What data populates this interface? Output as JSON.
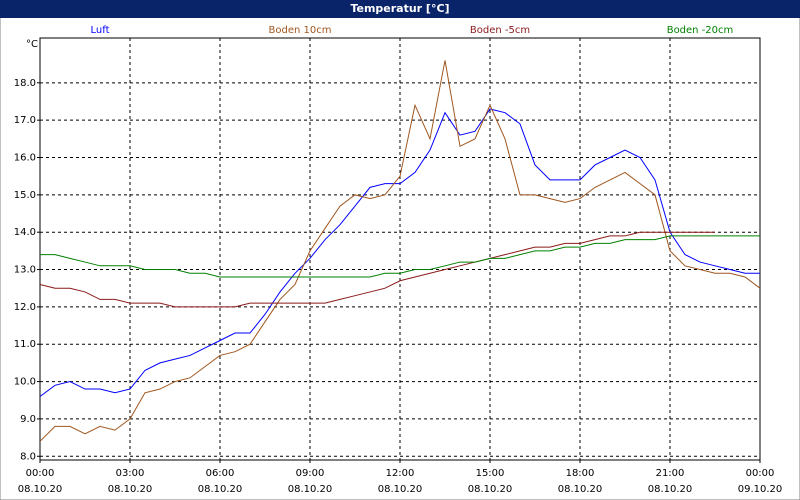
{
  "chart_data": {
    "type": "line",
    "title": "Temperatur [°C]",
    "y_label": "°C",
    "x": [
      0,
      0.5,
      1,
      1.5,
      2,
      2.5,
      3,
      3.5,
      4,
      4.5,
      5,
      5.5,
      6,
      6.5,
      7,
      7.5,
      8,
      8.5,
      9,
      9.5,
      10,
      10.5,
      11,
      11.5,
      12,
      12.5,
      13,
      13.5,
      14,
      14.5,
      15,
      15.5,
      16,
      16.5,
      17,
      17.5,
      18,
      18.5,
      19,
      19.5,
      20,
      20.5,
      21,
      21.5,
      22,
      22.5,
      23,
      23.5,
      24
    ],
    "xlim": [
      0,
      24
    ],
    "xticks": [
      {
        "value": 0,
        "label": "00:00",
        "date": "08.10.20"
      },
      {
        "value": 3,
        "label": "03:00",
        "date": "08.10.20"
      },
      {
        "value": 6,
        "label": "06:00",
        "date": "08.10.20"
      },
      {
        "value": 9,
        "label": "09:00",
        "date": "08.10.20"
      },
      {
        "value": 12,
        "label": "12:00",
        "date": "08.10.20"
      },
      {
        "value": 15,
        "label": "15:00",
        "date": "08.10.20"
      },
      {
        "value": 18,
        "label": "18:00",
        "date": "08.10.20"
      },
      {
        "value": 21,
        "label": "21:00",
        "date": "08.10.20"
      },
      {
        "value": 24,
        "label": "00:00",
        "date": "09.10.20"
      }
    ],
    "ylim": [
      7.9,
      19.2
    ],
    "yticks": [
      {
        "value": 8,
        "label": "8.0"
      },
      {
        "value": 9,
        "label": "9.0"
      },
      {
        "value": 10,
        "label": "10.0"
      },
      {
        "value": 11,
        "label": "11.0"
      },
      {
        "value": 12,
        "label": "12.0"
      },
      {
        "value": 13,
        "label": "13.0"
      },
      {
        "value": 14,
        "label": "14.0"
      },
      {
        "value": 15,
        "label": "15.0"
      },
      {
        "value": 16,
        "label": "16.0"
      },
      {
        "value": 17,
        "label": "17.0"
      },
      {
        "value": 18,
        "label": "18.0"
      }
    ],
    "grid": true,
    "series": [
      {
        "name": "Luft",
        "color": "#0000ff",
        "values": [
          9.6,
          9.9,
          10.0,
          9.8,
          9.8,
          9.7,
          9.8,
          10.3,
          10.5,
          10.6,
          10.7,
          10.9,
          11.1,
          11.3,
          11.3,
          11.8,
          12.4,
          12.9,
          13.3,
          13.8,
          14.2,
          14.7,
          15.2,
          15.3,
          15.3,
          15.6,
          16.2,
          17.2,
          16.6,
          16.7,
          17.3,
          17.2,
          16.9,
          15.8,
          15.4,
          15.4,
          15.4,
          15.8,
          16.0,
          16.2,
          16.0,
          15.4,
          14.0,
          13.4,
          13.2,
          13.1,
          13.0,
          12.9,
          12.9
        ]
      },
      {
        "name": "Boden 10cm",
        "color": "#a0561e",
        "values": [
          8.4,
          8.8,
          8.8,
          8.6,
          8.8,
          8.7,
          9.0,
          9.7,
          9.8,
          10.0,
          10.1,
          10.4,
          10.7,
          10.8,
          11.0,
          11.6,
          12.2,
          12.6,
          13.5,
          14.1,
          14.7,
          15.0,
          14.9,
          15.0,
          15.5,
          17.4,
          16.5,
          18.6,
          16.3,
          16.5,
          17.4,
          16.5,
          15.0,
          15.0,
          14.9,
          14.8,
          14.9,
          15.2,
          15.4,
          15.6,
          15.3,
          15.0,
          13.5,
          13.1,
          13.0,
          12.9,
          12.9,
          12.8,
          12.5
        ]
      },
      {
        "name": "Boden -5cm",
        "color": "#8b1a1a",
        "values": [
          12.6,
          12.5,
          12.5,
          12.4,
          12.2,
          12.2,
          12.1,
          12.1,
          12.1,
          12.0,
          12.0,
          12.0,
          12.0,
          12.0,
          12.1,
          12.1,
          12.1,
          12.1,
          12.1,
          12.1,
          12.2,
          12.3,
          12.4,
          12.5,
          12.7,
          12.8,
          12.9,
          13.0,
          13.1,
          13.2,
          13.3,
          13.4,
          13.5,
          13.6,
          13.6,
          13.7,
          13.7,
          13.8,
          13.9,
          13.9,
          14.0,
          14.0,
          14.0,
          14.0,
          14.0,
          14.0,
          null,
          null,
          null
        ]
      },
      {
        "name": "Boden -20cm",
        "color": "#008000",
        "values": [
          13.4,
          13.4,
          13.3,
          13.2,
          13.1,
          13.1,
          13.1,
          13.0,
          13.0,
          13.0,
          12.9,
          12.9,
          12.8,
          12.8,
          12.8,
          12.8,
          12.8,
          12.8,
          12.8,
          12.8,
          12.8,
          12.8,
          12.8,
          12.9,
          12.9,
          13.0,
          13.0,
          13.1,
          13.2,
          13.2,
          13.3,
          13.3,
          13.4,
          13.5,
          13.5,
          13.6,
          13.6,
          13.7,
          13.7,
          13.8,
          13.8,
          13.8,
          13.9,
          13.9,
          13.9,
          13.9,
          13.9,
          13.9,
          13.9
        ]
      }
    ]
  }
}
